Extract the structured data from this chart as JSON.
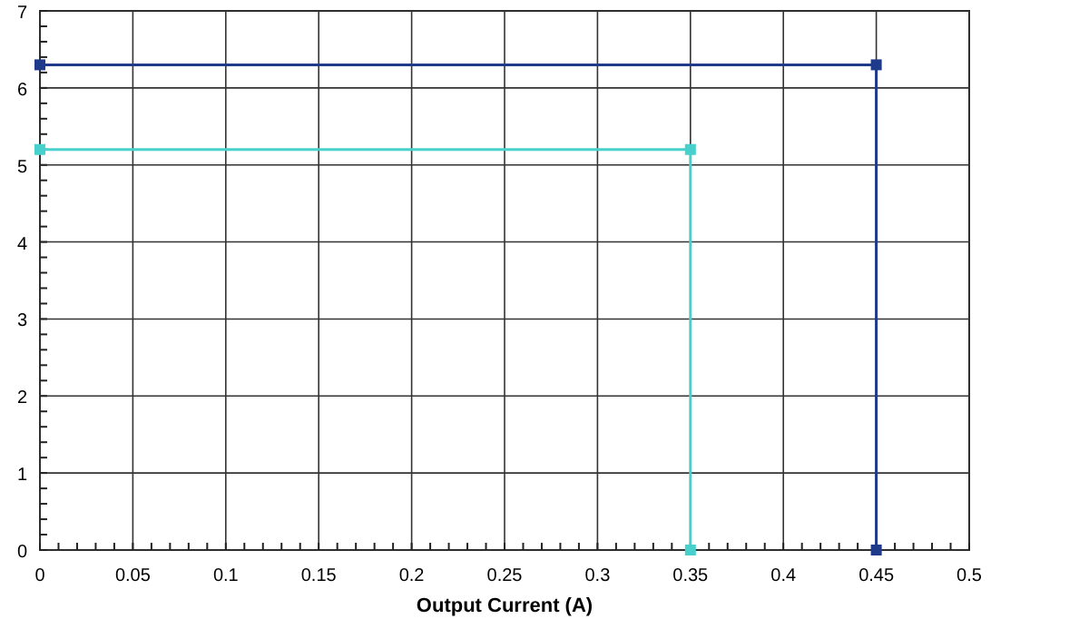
{
  "chart_data": {
    "type": "line",
    "xlabel": "Output Current (A)",
    "series": [
      {
        "color": "#1f3a8a",
        "x": [
          0,
          0.45,
          0.45
        ],
        "values": [
          6.3,
          6.3,
          0
        ]
      },
      {
        "color": "#48d1cc",
        "x": [
          0,
          0.35,
          0.35
        ],
        "values": [
          5.2,
          5.2,
          0
        ]
      }
    ],
    "xlim": [
      0,
      0.5
    ],
    "xticks": [
      0,
      0.05,
      0.1,
      0.15,
      0.2,
      0.25,
      0.3,
      0.35,
      0.4,
      0.45,
      0.5
    ],
    "ylim": [
      0,
      7
    ],
    "yticks": [
      0,
      1,
      2,
      3,
      4,
      5,
      6,
      7
    ],
    "grid": true,
    "marker": "square",
    "line_style": "solid"
  }
}
